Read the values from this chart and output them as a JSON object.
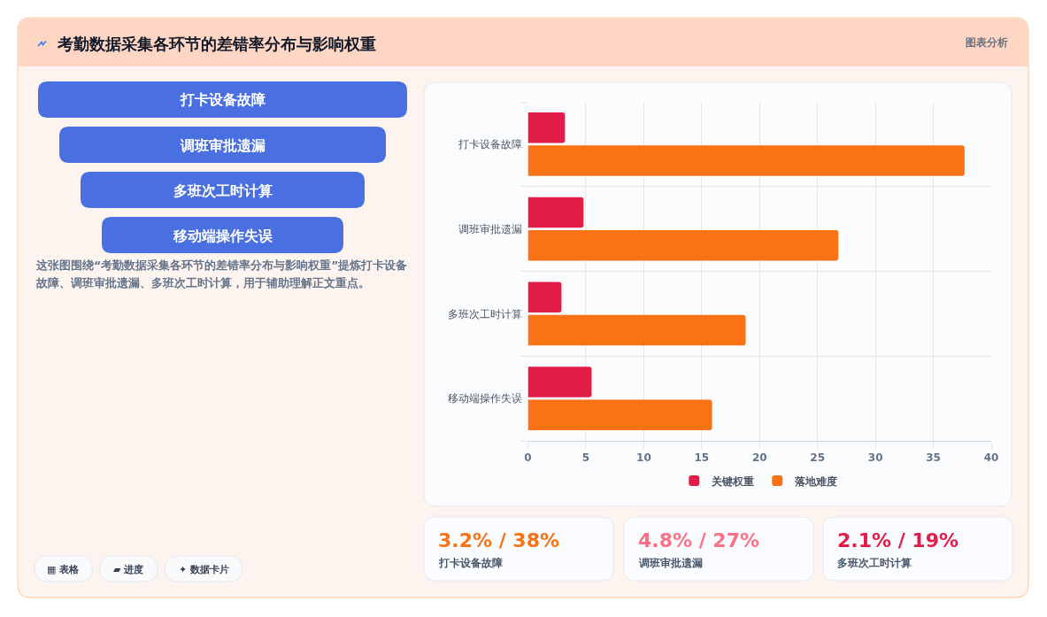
{
  "chart_data": [
    {
      "type": "other",
      "title": "考勤数据采集各环节的差错率分布与影响权重",
      "categories": [
        "打卡设备故障",
        "调班审批遗漏",
        "多班次工时计算",
        "移动端操作失误"
      ],
      "annotations": [
        "图表分析",
        "这张图围绕“考勤数据采集各环节的差错率分布与影响权重”提炼打卡设备故障、调班审批遗漏、多班次工时计算，用于辅助理解正文重点。",
        "▦ 表格",
        "▰ 进度",
        "✦ 数据卡片"
      ]
    },
    {
      "type": "bar",
      "orientation": "horizontal",
      "categories": [
        "打卡设备故障",
        "调班审批遗漏",
        "多班次工时计算",
        "移动端操作失误"
      ],
      "series": [
        {
          "name": "关键权重",
          "color": "#e11d48",
          "values": [
            3.2,
            4.8,
            2.9,
            5.5
          ]
        },
        {
          "name": "落地难度",
          "color": "#f97316",
          "values": [
            37.7,
            26.8,
            18.8,
            15.9
          ]
        }
      ],
      "xlim": [
        0,
        40
      ],
      "xticks": [
        0,
        5,
        10,
        15,
        20,
        25,
        30,
        35,
        40
      ],
      "grid": true,
      "legend": "bottom"
    },
    {
      "type": "other",
      "categories": [
        "打卡设备故障",
        "调班审批遗漏",
        "多班次工时计算"
      ],
      "value_labels": [
        "3.2% / 38%",
        "4.8% / 27%",
        "2.1% / 19%"
      ]
    }
  ]
}
